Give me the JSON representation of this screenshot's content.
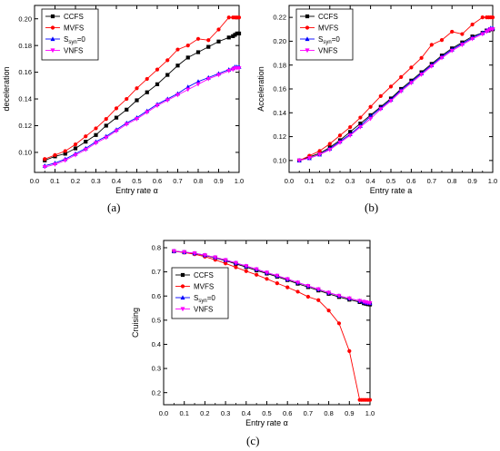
{
  "chart_data": [
    {
      "panel": "(a)",
      "type": "line",
      "xlabel": "Entry rate α",
      "ylabel": "deceleration",
      "xlim": [
        0.0,
        1.0
      ],
      "ylim": [
        0.085,
        0.21
      ],
      "xticks": [
        "0.0",
        "0.1",
        "0.2",
        "0.3",
        "0.4",
        "0.5",
        "0.6",
        "0.7",
        "0.8",
        "0.9",
        "1.0"
      ],
      "yticks": [
        "0.10",
        "0.12",
        "0.14",
        "0.16",
        "0.18",
        "0.20"
      ],
      "legend_position": "top-left",
      "series": [
        {
          "name": "CCFS",
          "color": "#000000",
          "marker": "square",
          "x": [
            0.05,
            0.1,
            0.15,
            0.2,
            0.25,
            0.3,
            0.35,
            0.4,
            0.45,
            0.5,
            0.55,
            0.6,
            0.65,
            0.7,
            0.75,
            0.8,
            0.85,
            0.9,
            0.95,
            0.97,
            0.98,
            0.99,
            1.0
          ],
          "y": [
            0.094,
            0.097,
            0.099,
            0.103,
            0.108,
            0.113,
            0.12,
            0.126,
            0.132,
            0.139,
            0.145,
            0.151,
            0.158,
            0.165,
            0.171,
            0.175,
            0.179,
            0.183,
            0.186,
            0.187,
            0.188,
            0.189,
            0.189
          ]
        },
        {
          "name": "MVFS",
          "color": "#ff0000",
          "marker": "dot",
          "x": [
            0.05,
            0.1,
            0.15,
            0.2,
            0.25,
            0.3,
            0.35,
            0.4,
            0.45,
            0.5,
            0.55,
            0.6,
            0.65,
            0.7,
            0.75,
            0.8,
            0.85,
            0.9,
            0.95,
            0.97,
            0.98,
            0.99,
            1.0
          ],
          "y": [
            0.095,
            0.098,
            0.101,
            0.106,
            0.112,
            0.118,
            0.125,
            0.133,
            0.14,
            0.148,
            0.155,
            0.162,
            0.169,
            0.177,
            0.18,
            0.185,
            0.184,
            0.192,
            0.201,
            0.201,
            0.201,
            0.201,
            0.201
          ]
        },
        {
          "name": "S_syn=0",
          "color": "#0000ff",
          "marker": "triangle",
          "x": [
            0.05,
            0.1,
            0.15,
            0.2,
            0.25,
            0.3,
            0.35,
            0.4,
            0.45,
            0.5,
            0.55,
            0.6,
            0.65,
            0.7,
            0.75,
            0.8,
            0.85,
            0.9,
            0.95,
            0.97,
            0.98,
            0.99,
            1.0
          ],
          "y": [
            0.09,
            0.092,
            0.095,
            0.099,
            0.103,
            0.108,
            0.112,
            0.117,
            0.122,
            0.126,
            0.131,
            0.136,
            0.14,
            0.144,
            0.149,
            0.153,
            0.156,
            0.159,
            0.162,
            0.163,
            0.164,
            0.164,
            0.164
          ]
        },
        {
          "name": "VNFS",
          "color": "#ff00ff",
          "marker": "tri-down",
          "x": [
            0.05,
            0.1,
            0.15,
            0.2,
            0.25,
            0.3,
            0.35,
            0.4,
            0.45,
            0.5,
            0.55,
            0.6,
            0.65,
            0.7,
            0.75,
            0.8,
            0.85,
            0.9,
            0.95,
            0.97,
            0.98,
            0.99,
            1.0
          ],
          "y": [
            0.089,
            0.091,
            0.094,
            0.098,
            0.102,
            0.107,
            0.111,
            0.116,
            0.121,
            0.125,
            0.13,
            0.135,
            0.139,
            0.143,
            0.147,
            0.151,
            0.155,
            0.158,
            0.161,
            0.162,
            0.163,
            0.163,
            0.163
          ]
        }
      ]
    },
    {
      "panel": "(b)",
      "type": "line",
      "xlabel": "Entry rate a",
      "ylabel": "Acceleration",
      "xlim": [
        0.0,
        1.0
      ],
      "ylim": [
        0.09,
        0.23
      ],
      "xticks": [
        "0.0",
        "0.1",
        "0.2",
        "0.3",
        "0.4",
        "0.5",
        "0.6",
        "0.7",
        "0.8",
        "0.9",
        "1.0"
      ],
      "yticks": [
        "0.10",
        "0.12",
        "0.14",
        "0.16",
        "0.18",
        "0.20",
        "0.22"
      ],
      "legend_position": "top-left",
      "series": [
        {
          "name": "CCFS",
          "color": "#000000",
          "marker": "square",
          "x": [
            0.05,
            0.1,
            0.15,
            0.2,
            0.25,
            0.3,
            0.35,
            0.4,
            0.45,
            0.5,
            0.55,
            0.6,
            0.65,
            0.7,
            0.75,
            0.8,
            0.85,
            0.9,
            0.95,
            0.97,
            0.98,
            0.99,
            1.0
          ],
          "y": [
            0.1,
            0.103,
            0.106,
            0.111,
            0.117,
            0.124,
            0.131,
            0.138,
            0.145,
            0.152,
            0.16,
            0.167,
            0.174,
            0.181,
            0.188,
            0.194,
            0.199,
            0.204,
            0.207,
            0.209,
            0.209,
            0.21,
            0.21
          ]
        },
        {
          "name": "MVFS",
          "color": "#ff0000",
          "marker": "dot",
          "x": [
            0.05,
            0.1,
            0.15,
            0.2,
            0.25,
            0.3,
            0.35,
            0.4,
            0.45,
            0.5,
            0.55,
            0.6,
            0.65,
            0.7,
            0.75,
            0.8,
            0.85,
            0.9,
            0.95,
            0.97,
            0.98,
            0.99,
            1.0
          ],
          "y": [
            0.1,
            0.104,
            0.108,
            0.114,
            0.121,
            0.128,
            0.136,
            0.145,
            0.154,
            0.162,
            0.17,
            0.178,
            0.186,
            0.197,
            0.201,
            0.208,
            0.206,
            0.214,
            0.22,
            0.22,
            0.22,
            0.22,
            0.22
          ]
        },
        {
          "name": "S_syn=0",
          "color": "#0000ff",
          "marker": "triangle",
          "x": [
            0.05,
            0.1,
            0.15,
            0.2,
            0.25,
            0.3,
            0.35,
            0.4,
            0.45,
            0.5,
            0.55,
            0.6,
            0.65,
            0.7,
            0.75,
            0.8,
            0.85,
            0.9,
            0.95,
            0.97,
            0.98,
            0.99,
            1.0
          ],
          "y": [
            0.1,
            0.102,
            0.105,
            0.11,
            0.116,
            0.122,
            0.129,
            0.137,
            0.144,
            0.151,
            0.159,
            0.166,
            0.173,
            0.18,
            0.187,
            0.193,
            0.198,
            0.203,
            0.207,
            0.209,
            0.21,
            0.211,
            0.211
          ]
        },
        {
          "name": "VNFS",
          "color": "#ff00ff",
          "marker": "tri-down",
          "x": [
            0.05,
            0.1,
            0.15,
            0.2,
            0.25,
            0.3,
            0.35,
            0.4,
            0.45,
            0.5,
            0.55,
            0.6,
            0.65,
            0.7,
            0.75,
            0.8,
            0.85,
            0.9,
            0.95,
            0.97,
            0.98,
            0.99,
            1.0
          ],
          "y": [
            0.1,
            0.102,
            0.105,
            0.109,
            0.115,
            0.121,
            0.128,
            0.135,
            0.143,
            0.15,
            0.158,
            0.165,
            0.172,
            0.179,
            0.186,
            0.192,
            0.197,
            0.202,
            0.206,
            0.208,
            0.209,
            0.21,
            0.21
          ]
        }
      ]
    },
    {
      "panel": "(c)",
      "type": "line",
      "xlabel": "Entry rate α",
      "ylabel": "Cruising",
      "xlim": [
        0.0,
        1.0
      ],
      "ylim": [
        0.15,
        0.83
      ],
      "xticks": [
        "0.0",
        "0.1",
        "0.2",
        "0.3",
        "0.4",
        "0.5",
        "0.6",
        "0.7",
        "0.8",
        "0.9",
        "1.0"
      ],
      "yticks": [
        "0.2",
        "0.3",
        "0.4",
        "0.5",
        "0.6",
        "0.7",
        "0.8"
      ],
      "legend_position": "center-left",
      "series": [
        {
          "name": "CCFS",
          "color": "#000000",
          "marker": "square",
          "x": [
            0.05,
            0.1,
            0.15,
            0.2,
            0.25,
            0.3,
            0.35,
            0.4,
            0.45,
            0.5,
            0.55,
            0.6,
            0.65,
            0.7,
            0.75,
            0.8,
            0.85,
            0.9,
            0.95,
            0.97,
            0.98,
            0.99,
            1.0
          ],
          "y": [
            0.785,
            0.781,
            0.776,
            0.768,
            0.758,
            0.746,
            0.733,
            0.72,
            0.706,
            0.693,
            0.68,
            0.666,
            0.651,
            0.637,
            0.623,
            0.609,
            0.596,
            0.585,
            0.575,
            0.57,
            0.568,
            0.566,
            0.565
          ]
        },
        {
          "name": "MVFS",
          "color": "#ff0000",
          "marker": "dot",
          "x": [
            0.05,
            0.1,
            0.15,
            0.2,
            0.25,
            0.3,
            0.35,
            0.4,
            0.45,
            0.5,
            0.55,
            0.6,
            0.65,
            0.7,
            0.75,
            0.8,
            0.85,
            0.9,
            0.95,
            0.96,
            0.97,
            0.98,
            0.99,
            1.0
          ],
          "y": [
            0.785,
            0.78,
            0.773,
            0.763,
            0.75,
            0.735,
            0.719,
            0.703,
            0.688,
            0.671,
            0.653,
            0.636,
            0.618,
            0.597,
            0.583,
            0.54,
            0.487,
            0.372,
            0.17,
            0.17,
            0.17,
            0.17,
            0.17,
            0.17
          ]
        },
        {
          "name": "S_syn=0",
          "color": "#0000ff",
          "marker": "triangle",
          "x": [
            0.05,
            0.1,
            0.15,
            0.2,
            0.25,
            0.3,
            0.35,
            0.4,
            0.45,
            0.5,
            0.55,
            0.6,
            0.65,
            0.7,
            0.75,
            0.8,
            0.85,
            0.9,
            0.95,
            0.97,
            0.98,
            0.99,
            1.0
          ],
          "y": [
            0.786,
            0.782,
            0.777,
            0.769,
            0.76,
            0.749,
            0.737,
            0.724,
            0.711,
            0.697,
            0.684,
            0.67,
            0.656,
            0.642,
            0.628,
            0.614,
            0.601,
            0.59,
            0.58,
            0.576,
            0.573,
            0.571,
            0.57
          ]
        },
        {
          "name": "VNFS",
          "color": "#ff00ff",
          "marker": "tri-down",
          "x": [
            0.05,
            0.1,
            0.15,
            0.2,
            0.25,
            0.3,
            0.35,
            0.4,
            0.45,
            0.5,
            0.55,
            0.6,
            0.65,
            0.7,
            0.75,
            0.8,
            0.85,
            0.9,
            0.95,
            0.97,
            0.98,
            0.99,
            1.0
          ],
          "y": [
            0.786,
            0.782,
            0.777,
            0.769,
            0.76,
            0.749,
            0.737,
            0.724,
            0.711,
            0.697,
            0.684,
            0.67,
            0.656,
            0.642,
            0.628,
            0.614,
            0.601,
            0.59,
            0.58,
            0.576,
            0.574,
            0.572,
            0.571
          ]
        }
      ]
    }
  ],
  "captions": [
    "(a)",
    "(b)",
    "(c)"
  ]
}
